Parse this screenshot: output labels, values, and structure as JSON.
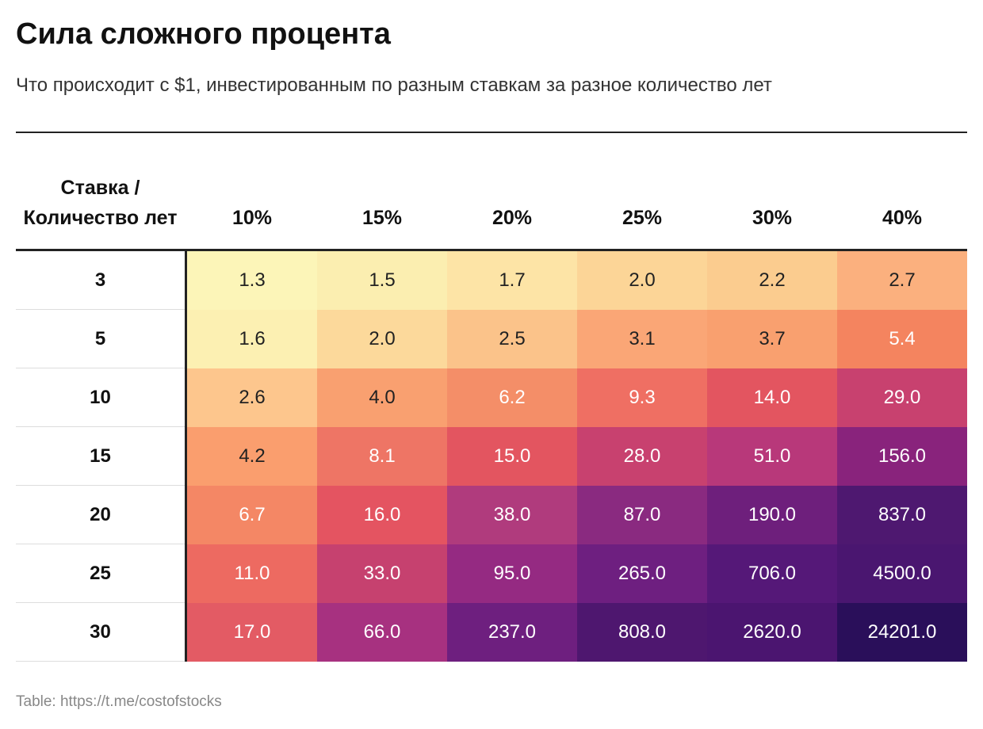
{
  "header": {
    "title": "Сила сложного процента",
    "subtitle": "Что происходит с $1, инвестированным по разным ставкам за разное количество лет"
  },
  "table": {
    "corner": "Ставка / Количество лет",
    "columns": [
      "10%",
      "15%",
      "20%",
      "25%",
      "30%",
      "40%"
    ],
    "rows": [
      {
        "label": "3",
        "cells": [
          "1.3",
          "1.5",
          "1.7",
          "2.0",
          "2.2",
          "2.7"
        ],
        "colors": [
          "#fcf5b8",
          "#fbeeb0",
          "#fde4a6",
          "#fcd597",
          "#fbcc8f",
          "#fbb07e"
        ]
      },
      {
        "label": "5",
        "cells": [
          "1.6",
          "2.0",
          "2.5",
          "3.1",
          "3.7",
          "5.4"
        ],
        "colors": [
          "#fcf0b2",
          "#fcd99b",
          "#fbc38a",
          "#faa676",
          "#f9a06f",
          "#f4845f"
        ]
      },
      {
        "label": "10",
        "cells": [
          "2.6",
          "4.0",
          "6.2",
          "9.3",
          "14.0",
          "29.0"
        ],
        "colors": [
          "#fdc68d",
          "#f9a070",
          "#f48e68",
          "#ef6f63",
          "#e35560",
          "#c8416f"
        ]
      },
      {
        "label": "15",
        "cells": [
          "4.2",
          "8.1",
          "15.0",
          "28.0",
          "51.0",
          "156.0"
        ],
        "colors": [
          "#fa9e6e",
          "#ee7565",
          "#e35560",
          "#c8416f",
          "#b8387a",
          "#89237c"
        ]
      },
      {
        "label": "20",
        "cells": [
          "6.7",
          "16.0",
          "38.0",
          "87.0",
          "190.0",
          "837.0"
        ],
        "colors": [
          "#f48765",
          "#e45461",
          "#b03b7d",
          "#8a2a80",
          "#6e1f7c",
          "#4e1870"
        ]
      },
      {
        "label": "25",
        "cells": [
          "11.0",
          "33.0",
          "95.0",
          "265.0",
          "706.0",
          "4500.0"
        ],
        "colors": [
          "#ed6a61",
          "#c6416f",
          "#952a82",
          "#6e1f80",
          "#551878",
          "#4a1670"
        ]
      },
      {
        "label": "30",
        "cells": [
          "17.0",
          "66.0",
          "237.0",
          "808.0",
          "2620.0",
          "24201.0"
        ],
        "colors": [
          "#e35b64",
          "#a73180",
          "#6e1f7f",
          "#4e176f",
          "#4b1570",
          "#2a0f5a"
        ]
      }
    ]
  },
  "footer": {
    "source": "Table: https://t.me/costofstocks"
  }
}
